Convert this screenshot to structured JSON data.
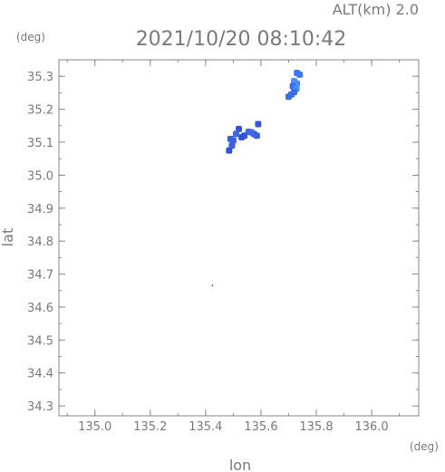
{
  "chart_data": {
    "type": "scatter",
    "title": "2021/10/20 08:10:42",
    "subtitle": "ALT(km) 2.0",
    "xlabel": "lon",
    "ylabel": "lat",
    "xunit": "(deg)",
    "yunit": "(deg)",
    "xlim": [
      134.87,
      136.17
    ],
    "ylim": [
      34.27,
      35.35
    ],
    "xticks": [
      135.0,
      135.2,
      135.4,
      135.6,
      135.8,
      136.0
    ],
    "yticks": [
      34.3,
      34.4,
      34.5,
      34.6,
      34.7,
      34.8,
      34.9,
      35.0,
      35.1,
      35.2,
      35.3
    ],
    "grid": false,
    "points": [
      {
        "x": 135.73,
        "y": 35.31,
        "c": "#3a7df0"
      },
      {
        "x": 135.74,
        "y": 35.305,
        "c": "#3a7df0"
      },
      {
        "x": 135.72,
        "y": 35.285,
        "c": "#4a8ff5"
      },
      {
        "x": 135.73,
        "y": 35.278,
        "c": "#4a8ff5"
      },
      {
        "x": 135.715,
        "y": 35.27,
        "c": "#3a6fe8"
      },
      {
        "x": 135.728,
        "y": 35.262,
        "c": "#4a8ff5"
      },
      {
        "x": 135.72,
        "y": 35.252,
        "c": "#3a6fe8"
      },
      {
        "x": 135.71,
        "y": 35.245,
        "c": "#3a6fe8"
      },
      {
        "x": 135.7,
        "y": 35.238,
        "c": "#3a6fe8"
      },
      {
        "x": 135.59,
        "y": 35.155,
        "c": "#3355dd"
      },
      {
        "x": 135.585,
        "y": 35.12,
        "c": "#3a60e0"
      },
      {
        "x": 135.575,
        "y": 35.125,
        "c": "#3a60e0"
      },
      {
        "x": 135.565,
        "y": 35.13,
        "c": "#4468e2"
      },
      {
        "x": 135.555,
        "y": 35.132,
        "c": "#4468e2"
      },
      {
        "x": 135.54,
        "y": 35.12,
        "c": "#3355dd"
      },
      {
        "x": 135.53,
        "y": 35.115,
        "c": "#3355dd"
      },
      {
        "x": 135.52,
        "y": 35.14,
        "c": "#3355dd"
      },
      {
        "x": 135.51,
        "y": 35.125,
        "c": "#4468e2"
      },
      {
        "x": 135.5,
        "y": 35.105,
        "c": "#3a60e0"
      },
      {
        "x": 135.49,
        "y": 35.11,
        "c": "#3a60e0"
      },
      {
        "x": 135.495,
        "y": 35.09,
        "c": "#3a60e0"
      },
      {
        "x": 135.485,
        "y": 35.075,
        "c": "#3355dd"
      },
      {
        "x": 135.425,
        "y": 34.665,
        "c": "#333333"
      }
    ]
  }
}
